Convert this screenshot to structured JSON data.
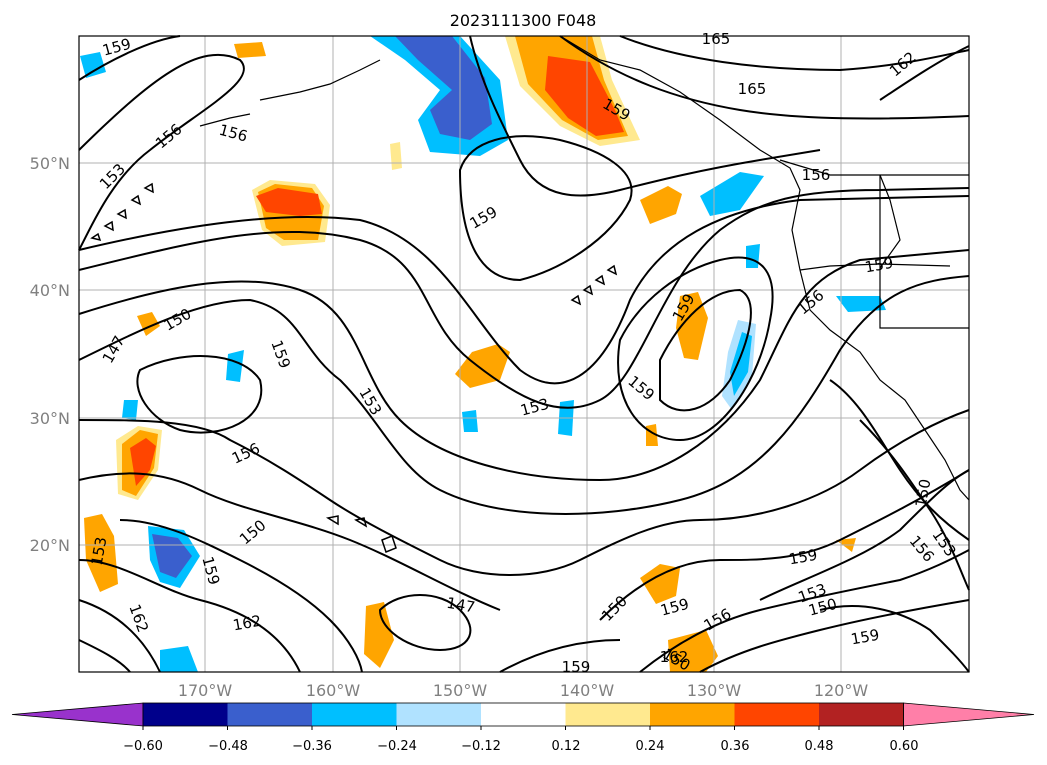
{
  "title": "2023111300 F048",
  "lat_labels": [
    "50°N",
    "40°N",
    "30°N",
    "20°N"
  ],
  "lon_labels": [
    "170°W",
    "160°W",
    "150°W",
    "140°W",
    "130°W",
    "120°W"
  ],
  "contour_labels": [
    "159",
    "165",
    "165",
    "162",
    "159",
    "156",
    "153",
    "156",
    "159",
    "156",
    "159",
    "150",
    "147",
    "159",
    "153",
    "159",
    "153",
    "156",
    "159",
    "150",
    "156",
    "150",
    "153",
    "159",
    "162",
    "147",
    "150",
    "159",
    "162",
    "156",
    "153",
    "150",
    "159",
    "153",
    "156",
    "150",
    "159",
    "162",
    "159"
  ],
  "colorbar": {
    "ticks": [
      "−0.60",
      "−0.48",
      "−0.36",
      "−0.24",
      "−0.12",
      "0.12",
      "0.24",
      "0.36",
      "0.48",
      "0.60"
    ],
    "colors": [
      "#9932cc",
      "#00008b",
      "#3a5fcd",
      "#00bfff",
      "#b0e2ff",
      "#ffffff",
      "#ffe98f",
      "#ffa500",
      "#ff4500",
      "#b22222",
      "#ff7fa8"
    ]
  }
}
